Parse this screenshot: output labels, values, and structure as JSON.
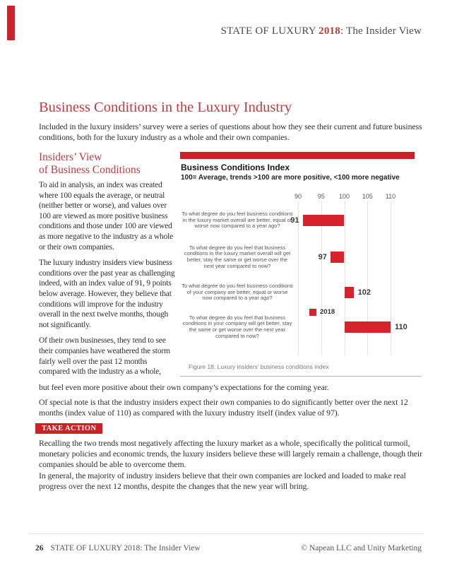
{
  "header": {
    "title_prefix": "STATE OF LUXURY ",
    "title_year": "2018",
    "title_suffix": ": The Insider View"
  },
  "article": {
    "title": "Business Conditions in the Luxury Industry",
    "intro": "Included in the luxury insiders’ survey were a series of questions about how they see their current and future business conditions, both for the luxury industry as a whole and their own companies.",
    "section_heading_line1": "Insiders’ View",
    "section_heading_line2": "of Business Conditions",
    "col_paragraphs": [
      "To aid in analysis, an index was created where 100 equals the average, or neutral (neither better or worse), and values over 100 are viewed as more positive business conditions and those under 100 are viewed as more negative to the industry as a whole or their own companies.",
      "The luxury industry insiders view business conditions over the past year as challenging indeed, with an index value of 91, 9 points below average.  However, they believe that conditions will improve for the industry overall in the next twelve months, though not significantly.",
      "Of their own businesses, they tend to see their companies have weathered the storm fairly well over the past 12 months compared with the industry as a whole,"
    ],
    "continuation": "but feel even more positive about their own company’s expectations for the coming year.",
    "special_note": "Of special note is that the industry insiders expect their own companies to do significantly better over the next 12 months (index value of 110) as compared with the luxury industry itself (index value of 97).",
    "take_action_label": "TAKE ACTION",
    "take_action_paragraph_1": "Recalling the two trends most negatively affecting the luxury market as a whole, specifically the political turmoil, monetary policies and economic trends, the luxury insiders believe these will largely remain a challenge, though their companies should be able to overcome them.",
    "take_action_paragraph_2": "In general, the majority of industry insiders believe that their own companies are locked and loaded to make real progress over the next 12 months, despite the changes that the new year will bring."
  },
  "chart_data": {
    "type": "bar",
    "orientation": "horizontal",
    "title": "Business Conditions Index",
    "subtitle": "100= Average, trends >100 are more positive, <100 more negative",
    "axis_ticks": [
      90,
      95,
      100,
      105,
      110
    ],
    "xlim": [
      90,
      110
    ],
    "baseline": 100,
    "categories": [
      "To what degree do you feel business conditions in the luxury market overall are better, equal or worse now compared to a year ago?",
      "To what degree do you feel that business conditions in the luxury market overall will get better, stay the same or get worse over the next year compared to now?",
      "To what degree do you feel business conditions of your company are better, equal or worse now compared to a year ago?",
      "To what degree do you feel that business conditions in your company will get better, stay the same or get worse over the next year compared to now?"
    ],
    "values": [
      91,
      97,
      102,
      110
    ],
    "series_name": "2018",
    "legend": [
      "2018"
    ],
    "legend_position": "bottom",
    "grid": true,
    "bar_color": "#d6232b",
    "caption": "Figure 18:  Luxury insiders’ business conditions index"
  },
  "colors": {
    "accent_red": "#ce2027",
    "bar_red": "#d6232b",
    "heading_red": "#bf3a3f"
  },
  "footer": {
    "page_number": "26",
    "report_title": "STATE OF LUXURY 2018: The Insider View",
    "copyright": "© Napean LLC and Unity Marketing"
  }
}
